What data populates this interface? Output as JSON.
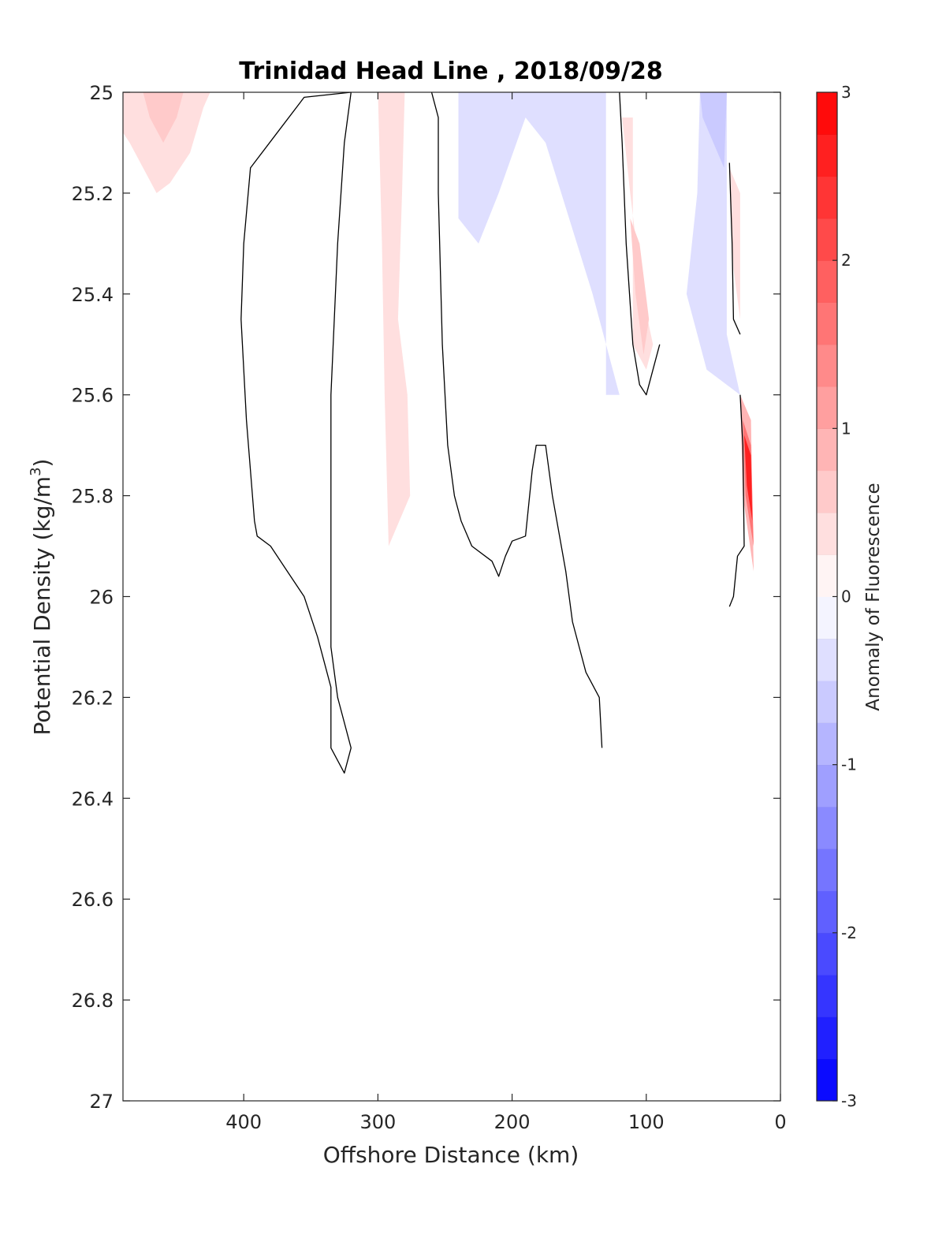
{
  "chart_data": {
    "type": "heatmap",
    "title": "Trinidad Head Line , 2018/09/28",
    "xlabel": "Offshore Distance (km)",
    "ylabel_main": "Potential Density (kg/m",
    "ylabel_sup": "3",
    "ylabel_end": ")",
    "xlim": [
      490,
      0
    ],
    "ylim": [
      25,
      27
    ],
    "x_reversed": true,
    "y_reversed": true,
    "x_ticks": [
      400,
      300,
      200,
      100,
      0
    ],
    "y_ticks": [
      25,
      25.2,
      25.4,
      25.6,
      25.8,
      26,
      26.2,
      26.4,
      26.6,
      26.8,
      27
    ],
    "colorbar": {
      "label": "Anomaly of Fluorescence",
      "range": [
        -3,
        3
      ],
      "ticks": [
        -3,
        -2,
        -1,
        0,
        1,
        2,
        3
      ],
      "levels": 24,
      "low_color": "#0000ff",
      "mid_color": "#ffffff",
      "high_color": "#ff0000"
    },
    "anomaly_regions": [
      {
        "level": 0.375,
        "points": [
          [
            490,
            25
          ],
          [
            425,
            25
          ],
          [
            430,
            25.03
          ],
          [
            440,
            25.12
          ],
          [
            455,
            25.18
          ],
          [
            465,
            25.2
          ],
          [
            475,
            25.15
          ],
          [
            485,
            25.1
          ],
          [
            490,
            25.08
          ]
        ]
      },
      {
        "level": 0.625,
        "points": [
          [
            475,
            25
          ],
          [
            445,
            25
          ],
          [
            450,
            25.05
          ],
          [
            460,
            25.1
          ],
          [
            470,
            25.05
          ]
        ]
      },
      {
        "level": 0.375,
        "points": [
          [
            300,
            25
          ],
          [
            280,
            25
          ],
          [
            282,
            25.2
          ],
          [
            285,
            25.45
          ],
          [
            278,
            25.6
          ],
          [
            276,
            25.8
          ],
          [
            292,
            25.9
          ],
          [
            295,
            25.6
          ],
          [
            297,
            25.3
          ]
        ]
      },
      {
        "level": -0.375,
        "points": [
          [
            240,
            25
          ],
          [
            140,
            25
          ],
          [
            130,
            25
          ],
          [
            130,
            25.6
          ],
          [
            120,
            25.6
          ],
          [
            140,
            25.4
          ],
          [
            175,
            25.1
          ],
          [
            190,
            25.05
          ],
          [
            210,
            25.2
          ],
          [
            225,
            25.3
          ],
          [
            240,
            25.25
          ]
        ]
      },
      {
        "level": -0.375,
        "points": [
          [
            60,
            25
          ],
          [
            40,
            25
          ],
          [
            40,
            25.48
          ],
          [
            30,
            25.6
          ],
          [
            55,
            25.55
          ],
          [
            70,
            25.4
          ],
          [
            62,
            25.2
          ]
        ]
      },
      {
        "level": -0.625,
        "points": [
          [
            60,
            25
          ],
          [
            40,
            25
          ],
          [
            42,
            25.15
          ],
          [
            50,
            25.1
          ],
          [
            58,
            25.05
          ]
        ]
      },
      {
        "level": 0.375,
        "points": [
          [
            118,
            25.05
          ],
          [
            110,
            25.05
          ],
          [
            110,
            25.5
          ],
          [
            100,
            25.55
          ],
          [
            95,
            25.5
          ],
          [
            103,
            25.4
          ],
          [
            112,
            25.2
          ]
        ]
      },
      {
        "level": 0.625,
        "points": [
          [
            112,
            25.25
          ],
          [
            105,
            25.3
          ],
          [
            98,
            25.45
          ],
          [
            102,
            25.52
          ],
          [
            108,
            25.4
          ]
        ]
      },
      {
        "level": 0.375,
        "points": [
          [
            38,
            25.15
          ],
          [
            30,
            25.2
          ],
          [
            30,
            25.45
          ],
          [
            35,
            25.35
          ]
        ]
      },
      {
        "level": 0.875,
        "points": [
          [
            30,
            25.6
          ],
          [
            22,
            25.65
          ],
          [
            20,
            25.95
          ],
          [
            28,
            25.8
          ]
        ]
      },
      {
        "level": 1.625,
        "points": [
          [
            28,
            25.65
          ],
          [
            22,
            25.7
          ],
          [
            20,
            25.9
          ],
          [
            26,
            25.8
          ]
        ]
      },
      {
        "level": 2.625,
        "points": [
          [
            27,
            25.68
          ],
          [
            22,
            25.72
          ],
          [
            21,
            25.85
          ],
          [
            25,
            25.78
          ]
        ]
      }
    ],
    "contour_zero": [
      [
        [
          320,
          25
        ],
        [
          355,
          25.01
        ],
        [
          375,
          25.08
        ],
        [
          395,
          25.15
        ],
        [
          400,
          25.3
        ],
        [
          402,
          25.45
        ],
        [
          398,
          25.65
        ],
        [
          392,
          25.85
        ],
        [
          390,
          25.88
        ],
        [
          380,
          25.9
        ],
        [
          370,
          25.94
        ],
        [
          355,
          26.0
        ],
        [
          345,
          26.08
        ],
        [
          335,
          26.18
        ],
        [
          335,
          26.3
        ],
        [
          325,
          26.35
        ],
        [
          320,
          26.3
        ],
        [
          330,
          26.2
        ],
        [
          335,
          26.1
        ],
        [
          335,
          25.9
        ],
        [
          335,
          25.6
        ],
        [
          330,
          25.3
        ],
        [
          325,
          25.1
        ],
        [
          320,
          25
        ]
      ],
      [
        [
          260,
          25
        ],
        [
          255,
          25.05
        ],
        [
          255,
          25.2
        ],
        [
          252,
          25.5
        ],
        [
          248,
          25.7
        ],
        [
          243,
          25.8
        ],
        [
          238,
          25.85
        ],
        [
          230,
          25.9
        ],
        [
          215,
          25.93
        ],
        [
          210,
          25.96
        ],
        [
          205,
          25.92
        ],
        [
          200,
          25.89
        ],
        [
          190,
          25.88
        ],
        [
          185,
          25.75
        ],
        [
          182,
          25.7
        ],
        [
          175,
          25.7
        ],
        [
          170,
          25.8
        ],
        [
          160,
          25.95
        ],
        [
          155,
          26.05
        ],
        [
          145,
          26.15
        ],
        [
          135,
          26.2
        ],
        [
          133,
          26.3
        ]
      ],
      [
        [
          120,
          25
        ],
        [
          118,
          25.1
        ],
        [
          115,
          25.3
        ],
        [
          110,
          25.5
        ],
        [
          105,
          25.58
        ],
        [
          100,
          25.6
        ],
        [
          95,
          25.55
        ],
        [
          90,
          25.5
        ]
      ],
      [
        [
          38,
          25.14
        ],
        [
          36,
          25.3
        ],
        [
          35,
          25.45
        ],
        [
          30,
          25.48
        ]
      ],
      [
        [
          30,
          25.6
        ],
        [
          28,
          25.7
        ],
        [
          27,
          25.9
        ],
        [
          32,
          25.92
        ],
        [
          35,
          26.0
        ],
        [
          38,
          26.02
        ]
      ]
    ]
  }
}
